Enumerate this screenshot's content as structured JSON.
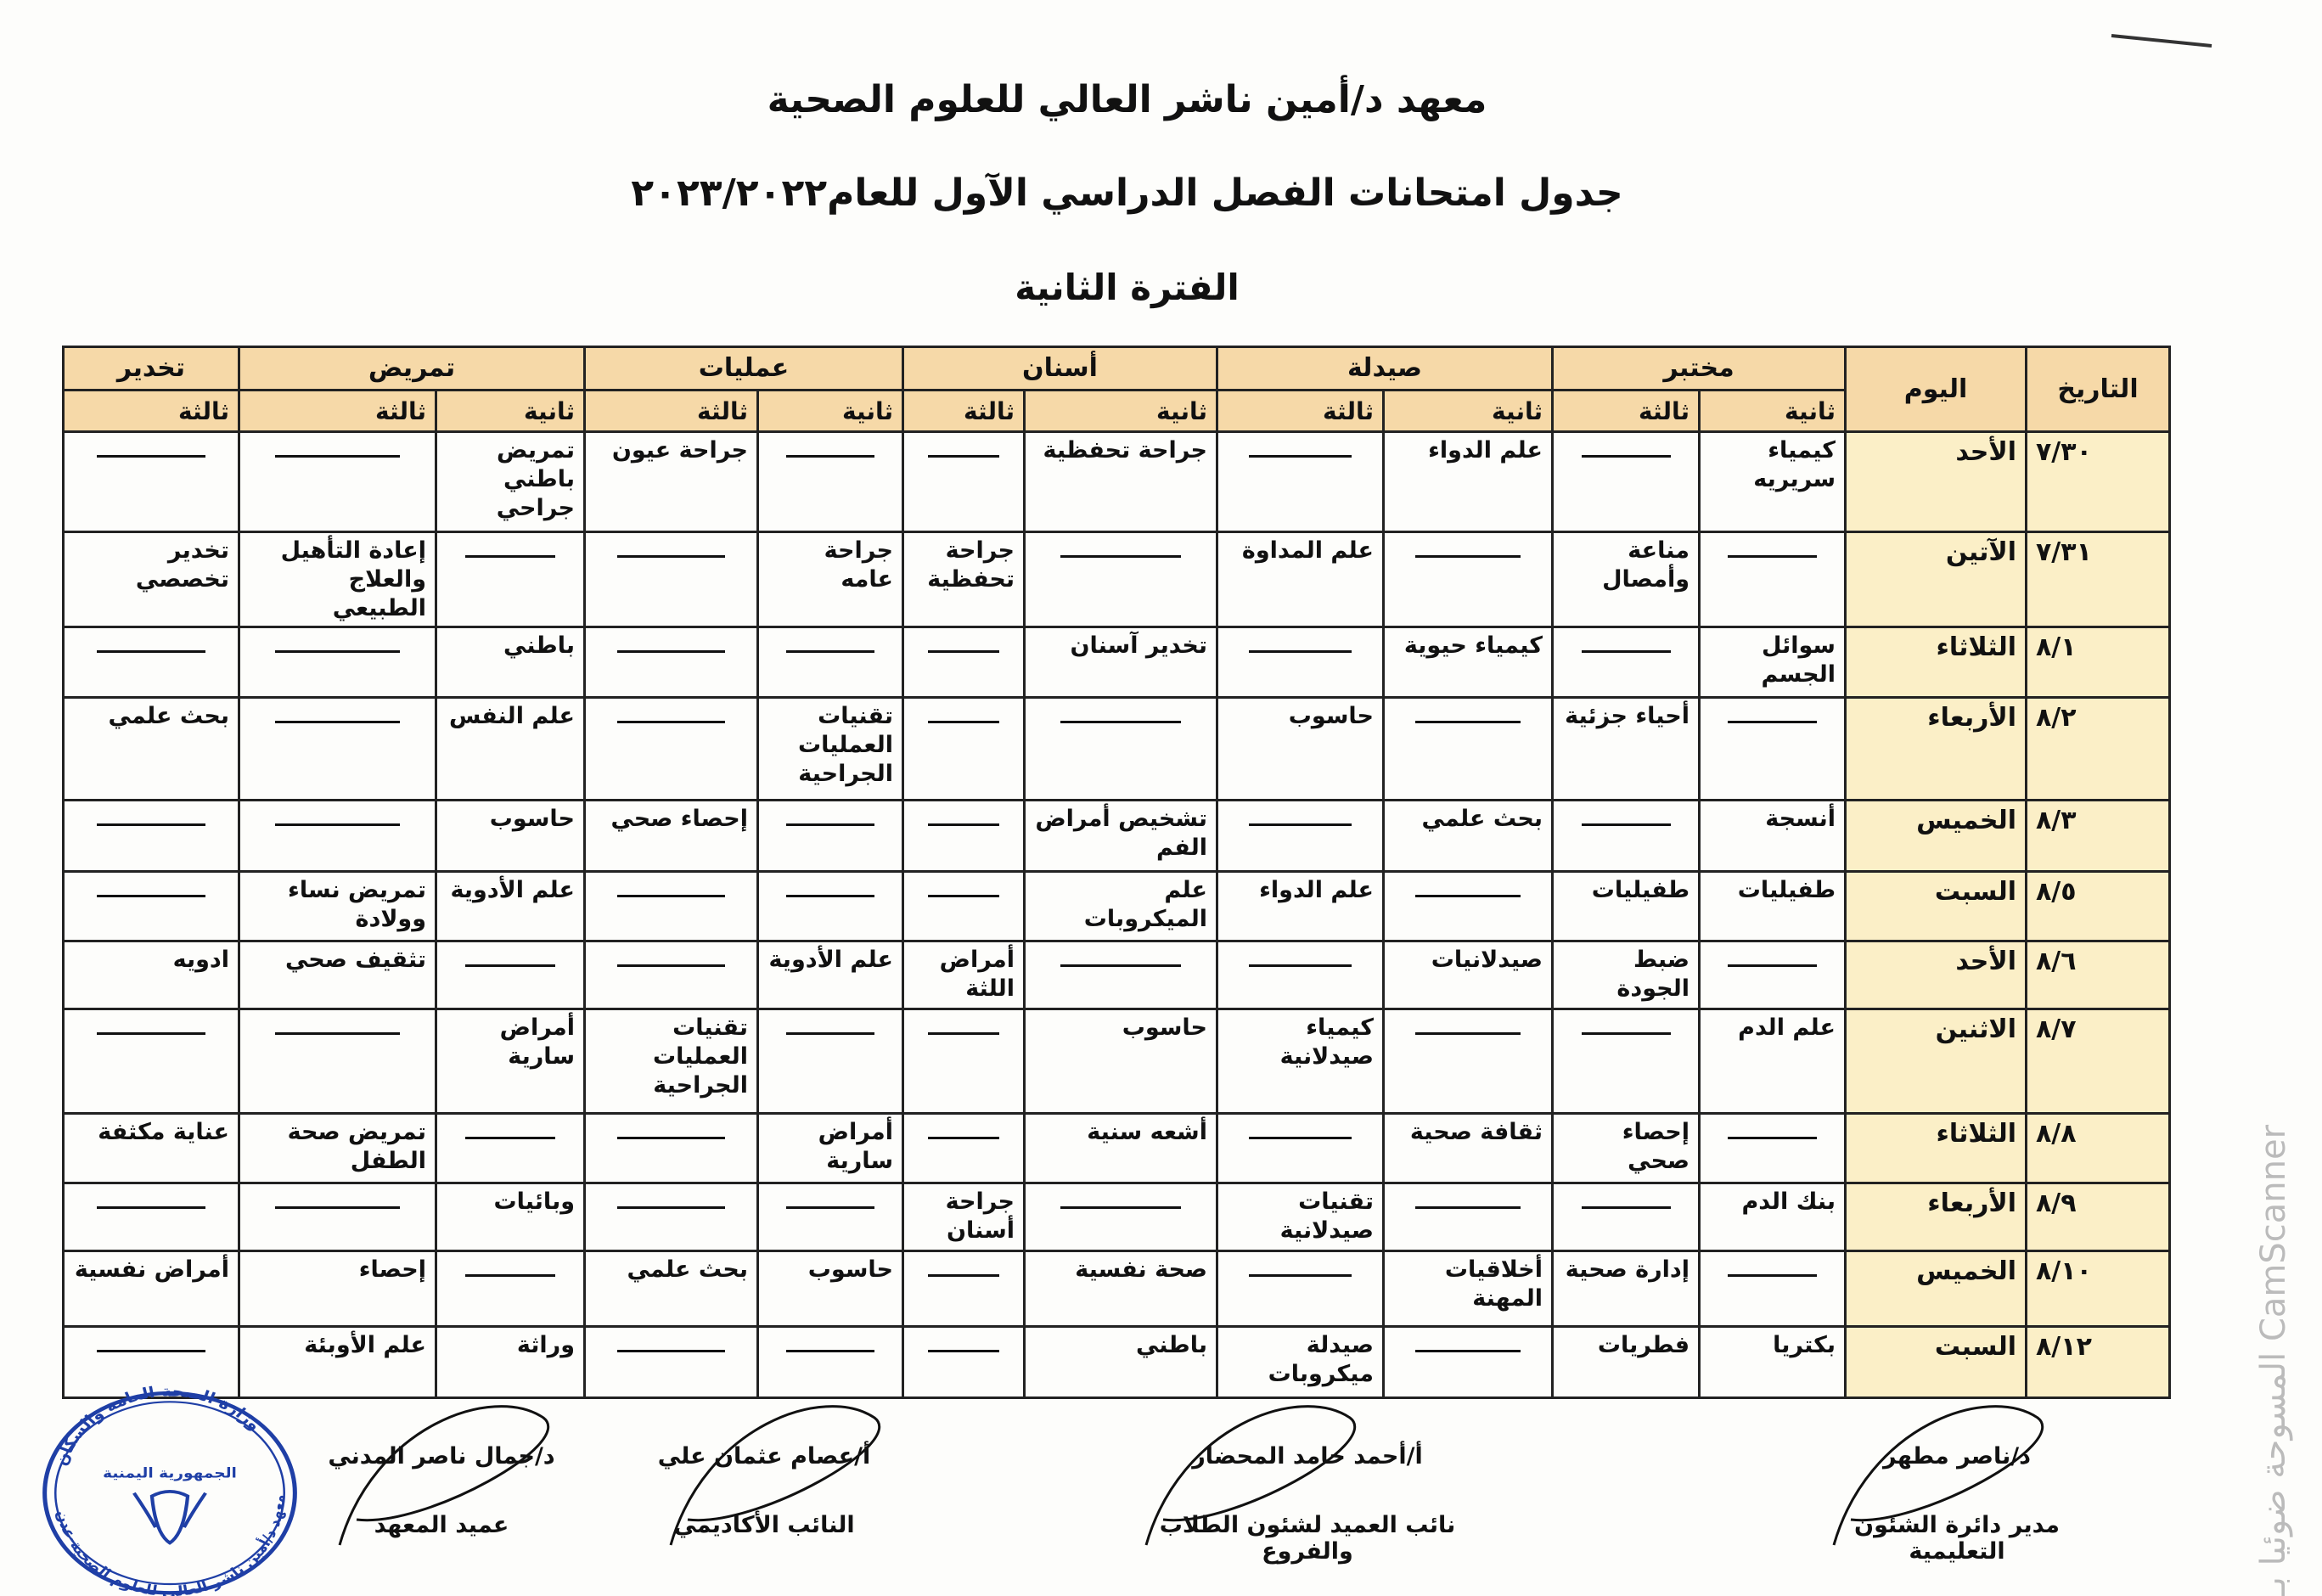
{
  "header": {
    "institute": "معهد د/أمين ناشر العالي للعلوم الصحية",
    "schedule_title": "جدول امتحانات الفصل الدراسي الآول للعام٢٠٢٣/٢٠٢٢",
    "period": "الفترة الثانية"
  },
  "table": {
    "date_header": "التاريخ",
    "day_header": "اليوم",
    "departments": [
      {
        "name": "مختبر",
        "levels": [
          "ثانية",
          "ثالثة"
        ]
      },
      {
        "name": "صيدلة",
        "levels": [
          "ثانية",
          "ثالثة"
        ]
      },
      {
        "name": "أسنان",
        "levels": [
          "ثانية",
          "ثالثة"
        ]
      },
      {
        "name": "عمليات",
        "levels": [
          "ثانية",
          "ثالثة"
        ]
      },
      {
        "name": "تمريض",
        "levels": [
          "ثانية",
          "ثالثة"
        ]
      },
      {
        "name": "تخدير",
        "levels": [
          "ثالثة"
        ]
      }
    ],
    "rows": [
      {
        "date": "٧/٣٠",
        "day": "الأحد",
        "cells": [
          "كيمياء سريريه",
          "—",
          "علم الدواء",
          "—",
          "جراحة تحفظية",
          "—",
          "—",
          "جراحة عيون",
          "تمريض باطني جراحي",
          "—",
          "—"
        ]
      },
      {
        "date": "٧/٣١",
        "day": "الآتين",
        "cells": [
          "—",
          "مناعة وأمصال",
          "—",
          "علم المداوة",
          "—",
          "جراحة تحفظية",
          "جراحة عامه",
          "—",
          "—",
          "إعادة التأهيل والعلاج الطبيعي",
          "تخدير تخصصي"
        ]
      },
      {
        "date": "٨/١",
        "day": "الثلاثاء",
        "cells": [
          "سوائل الجسم",
          "—",
          "كيمياء حيوية",
          "—",
          "تخدير آسنان",
          "—",
          "—",
          "—",
          "باطني",
          "—",
          "—"
        ]
      },
      {
        "date": "٨/٢",
        "day": "الأربعاء",
        "cells": [
          "—",
          "أحياء جزئية",
          "—",
          "حاسوب",
          "—",
          "—",
          "تقنيات العمليات الجراحية",
          "—",
          "علم النفس",
          "—",
          "بحث علمي"
        ]
      },
      {
        "date": "٨/٣",
        "day": "الخميس",
        "cells": [
          "أنسجة",
          "—",
          "بحث علمي",
          "—",
          "تشخيص أمراض الفم",
          "—",
          "—",
          "إحصاء صحي",
          "حاسوب",
          "—",
          "—"
        ]
      },
      {
        "date": "٨/٥",
        "day": "السبت",
        "cells": [
          "طفيليات",
          "طفيليات",
          "—",
          "علم الدواء",
          "علم الميكروبات",
          "—",
          "—",
          "—",
          "علم الأدوية",
          "تمريض نساء وولادة",
          "—"
        ]
      },
      {
        "date": "٨/٦",
        "day": "الأحد",
        "cells": [
          "—",
          "ضبط الجودة",
          "صيدلانيات",
          "—",
          "—",
          "أمراض اللثة",
          "علم الأدوية",
          "—",
          "—",
          "تثقيف صحي",
          "ادويه"
        ]
      },
      {
        "date": "٨/٧",
        "day": "الاثنين",
        "cells": [
          "علم الدم",
          "—",
          "—",
          "كيمياء صيدلانية",
          "حاسوب",
          "—",
          "—",
          "تقنيات العمليات الجراحية",
          "أمراض سارية",
          "—",
          "—"
        ]
      },
      {
        "date": "٨/٨",
        "day": "الثلاثاء",
        "cells": [
          "—",
          "إحصاء صحي",
          "ثقافة صحية",
          "—",
          "أشعه سنية",
          "—",
          "أمراض سارية",
          "—",
          "—",
          "تمريض صحة الطفل",
          "عناية مكثفة"
        ]
      },
      {
        "date": "٨/٩",
        "day": "الأربعاء",
        "cells": [
          "بنك الدم",
          "—",
          "—",
          "تقنيات صيدلانية",
          "—",
          "جراحة أسنان",
          "—",
          "—",
          "وبائيات",
          "—",
          "—"
        ]
      },
      {
        "date": "٨/١٠",
        "day": "الخميس",
        "cells": [
          "—",
          "إدارة صحية",
          "أخلاقيات المهنة",
          "—",
          "صحة نفسية",
          "—",
          "حاسوب",
          "بحث علمي",
          "—",
          "إحصاء",
          "أمراض نفسية"
        ]
      },
      {
        "date": "٨/١٢",
        "day": "السبت",
        "cells": [
          "بكتريا",
          "فطريات",
          "—",
          "صيدلة ميكروبات",
          "باطني",
          "—",
          "—",
          "—",
          "وراثة",
          "علم الأوبئة",
          "—"
        ]
      }
    ]
  },
  "signatures": [
    {
      "name": "د/ناصر مطهر",
      "role": "مدير دائرة الشئون التعليمية"
    },
    {
      "name": "أ/أحمد حامد المحضار",
      "role": "نائب العميد لشئون الطلاب والفروع"
    },
    {
      "name": "أ/عصام عثمان علي",
      "role": "النائب الأكاديمي"
    },
    {
      "name": "د/جمال ناصر المدني",
      "role": "عميد المعهد"
    }
  ],
  "stamp": {
    "top": "الجمهورية اليمنية",
    "ministry": "وزارة الصحة العامة والسكان",
    "institute": "معهد د/أمين ناشر العالي للعلوم الصحية-عدن",
    "ink_color": "#1f3fa6"
  },
  "watermark": "المسوحة ضوئيا بـ CamScanner",
  "colors": {
    "header_bg": "#f6d9a8",
    "day_bg": "#fbefc7"
  }
}
